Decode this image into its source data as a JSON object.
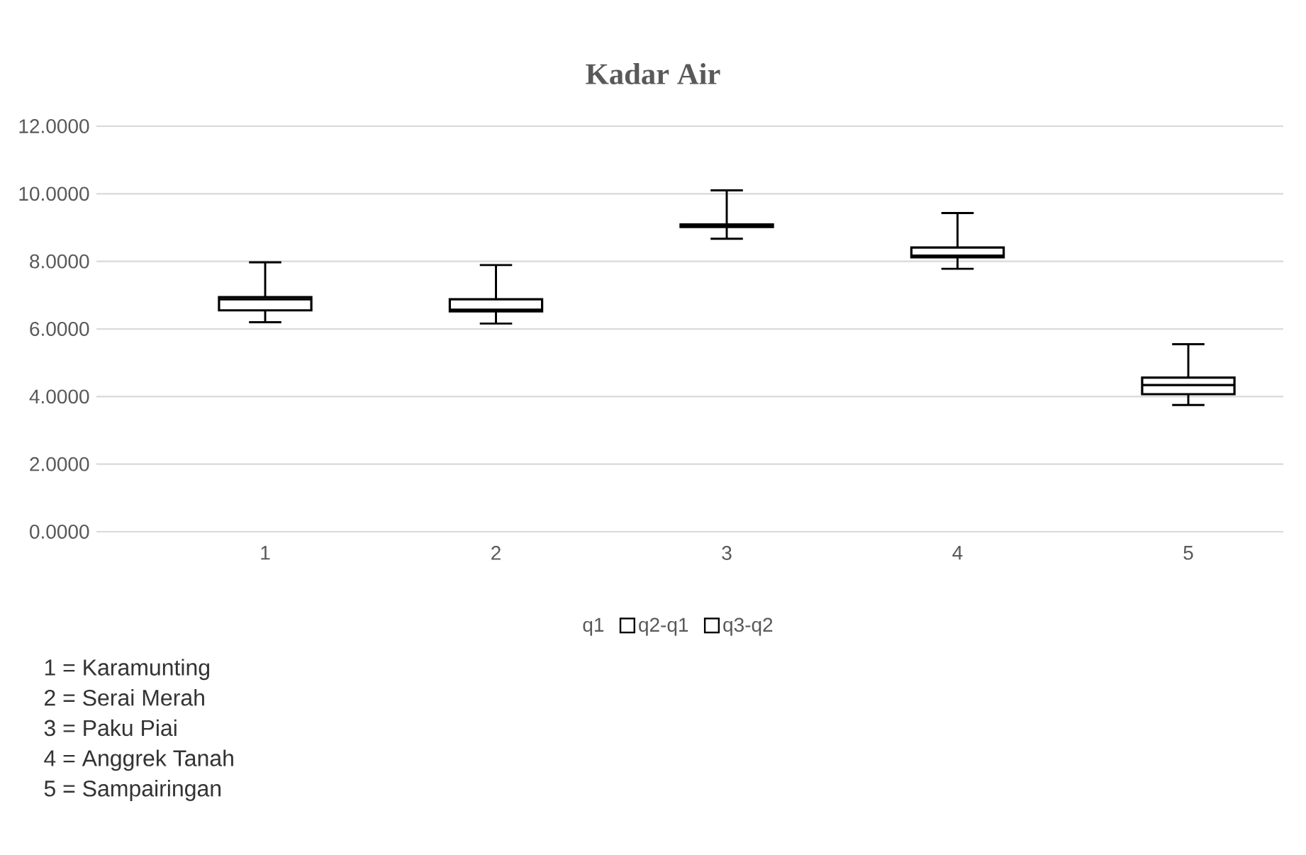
{
  "chart_data": {
    "type": "box",
    "title": "Kadar Air",
    "color": "#ffffff",
    "categories": [
      "1",
      "2",
      "3",
      "4",
      "5"
    ],
    "boxes": [
      {
        "low": 6.2,
        "q1": 6.55,
        "median": 6.88,
        "q3": 6.94,
        "high": 7.97
      },
      {
        "low": 6.16,
        "q1": 6.52,
        "median": 6.57,
        "q3": 6.88,
        "high": 7.89
      },
      {
        "low": 8.67,
        "q1": 9.02,
        "median": 9.05,
        "q3": 9.09,
        "high": 10.1
      },
      {
        "low": 7.78,
        "q1": 8.12,
        "median": 8.17,
        "q3": 8.41,
        "high": 9.43
      },
      {
        "low": 3.75,
        "q1": 4.07,
        "median": 4.34,
        "q3": 4.56,
        "high": 5.55
      }
    ],
    "ylim": [
      0,
      12
    ],
    "yticks": [
      {
        "value": 0,
        "label": "0.0000"
      },
      {
        "value": 2,
        "label": "2.0000"
      },
      {
        "value": 4,
        "label": "4.0000"
      },
      {
        "value": 6,
        "label": "6.0000"
      },
      {
        "value": 8,
        "label": "8.0000"
      },
      {
        "value": 10,
        "label": "10.0000"
      },
      {
        "value": 12,
        "label": "12.0000"
      }
    ],
    "grid": "y",
    "annotations": [
      "q1",
      "q2-q1",
      "q3-q2",
      "1 = Karamunting",
      "2 = Serai Merah",
      "3 = Paku Piai",
      "4 = Anggrek Tanah",
      "5 = Sampairingan"
    ]
  }
}
